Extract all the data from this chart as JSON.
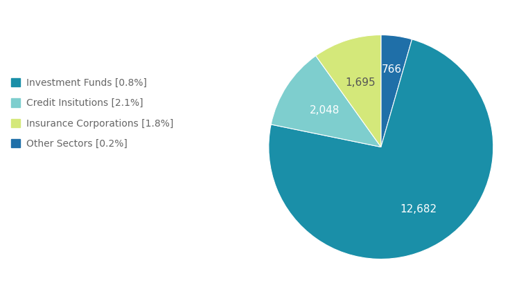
{
  "pie_values": [
    766,
    12682,
    2048,
    1695
  ],
  "pie_colors": [
    "#1f6fa8",
    "#1a8fa8",
    "#7ecece",
    "#d4e87a"
  ],
  "pie_text": [
    "766",
    "12,682",
    "2,048",
    "1,695"
  ],
  "pie_text_colors": [
    "white",
    "white",
    "white",
    "#555555"
  ],
  "startangle": 90,
  "legend_labels": [
    "Investment Funds [0.8%]",
    "Credit Insitutions [2.1%]",
    "Insurance Corporations [1.8%]",
    "Other Sectors [0.2%]"
  ],
  "legend_colors": [
    "#1a8fa8",
    "#7ecece",
    "#d4e87a",
    "#1f6fa8"
  ],
  "background_color": "#ffffff",
  "text_fontsize": 11,
  "legend_fontsize": 10
}
